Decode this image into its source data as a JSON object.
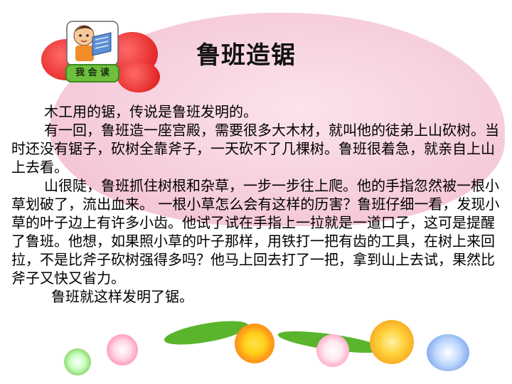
{
  "title": "鲁班造锯",
  "reader_badge": "我 会 读",
  "paragraphs": [
    "木工用的锯，传说是鲁班发明的。",
    "有一回，鲁班造一座宫殿，需要很多大木材，就叫他的徒弟上山砍树。当时还没有锯子，砍树全靠斧子，一天砍不了几棵树。鲁班很着急，就亲自上山上去看。",
    "山很陡，鲁班抓住树根和杂草，一步一步往上爬。他的手指忽然被一根小草划破了，流出血来。 一根小草怎么会有这样的历害？鲁班仔细一看，发现小草的叶子边上有许多小齿。他试了试在手指上一拉就是一道口子，这可是提醒了鲁班。他想，如果照小草的叶子那样，用铁打一把有齿的工具，在树上来回拉，不是比斧子砍树强得多吗？他马上回去打了一把，拿到山上去试，果然比斧子又快又省力。",
    "鲁班就这样发明了锯。"
  ],
  "colors": {
    "background_blob": "#f6cedd",
    "petals": "#e62b2b",
    "badge": "#6fbf3e",
    "grass": "#5ab52c"
  },
  "icons": {
    "reader": "boy-reading-book-icon"
  }
}
